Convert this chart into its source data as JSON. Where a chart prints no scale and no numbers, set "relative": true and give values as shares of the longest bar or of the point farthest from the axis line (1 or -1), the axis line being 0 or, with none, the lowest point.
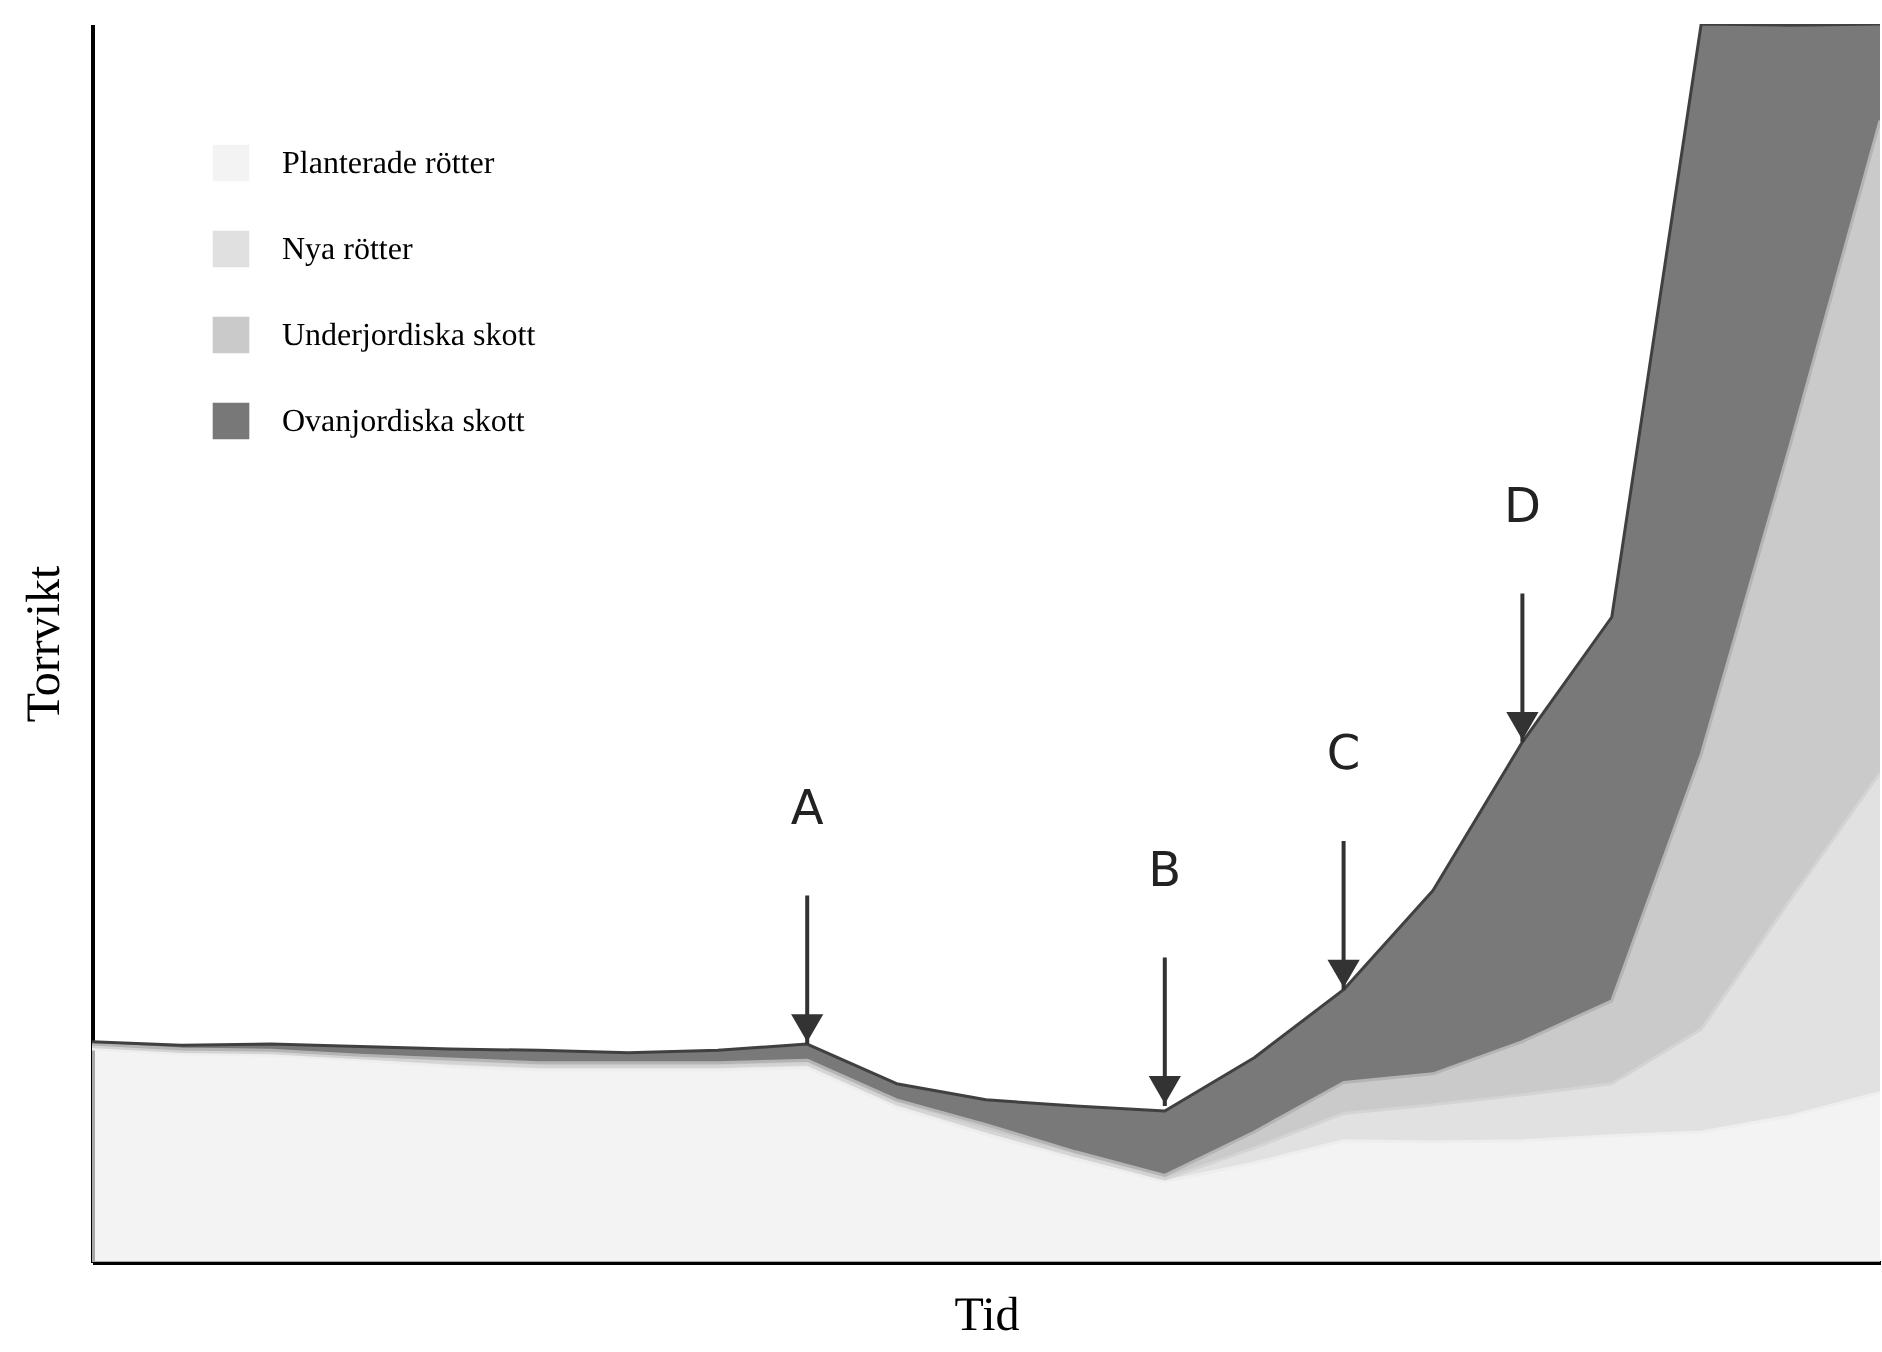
{
  "chart_data": {
    "type": "area",
    "stacked": true,
    "relative": true,
    "xlabel": "Tid",
    "ylabel": "Torrvikt",
    "legend": "top left",
    "tick_labels": false,
    "categories": [
      null,
      null,
      null,
      null,
      null,
      null,
      null,
      null,
      null,
      null,
      null,
      null,
      null,
      null,
      null,
      null,
      null,
      null,
      null,
      null,
      null
    ],
    "series": [
      {
        "name": "Planterade rötter",
        "color": "#eeeeee",
        "values": [
          0.172,
          0.168,
          0.167,
          0.163,
          0.158,
          0.155,
          0.155,
          0.155,
          0.157,
          0.125,
          0.103,
          0.083,
          0.065,
          0.08,
          0.098,
          0.097,
          0.098,
          0.102,
          0.105,
          0.118,
          0.137
        ]
      },
      {
        "name": "Nya rötter",
        "color": "#d4d4d4",
        "values": [
          0.002,
          0.002,
          0.002,
          0.002,
          0.003,
          0.003,
          0.003,
          0.003,
          0.003,
          0.003,
          0.003,
          0.003,
          0.002,
          0.012,
          0.022,
          0.03,
          0.037,
          0.042,
          0.083,
          0.175,
          0.258
        ]
      },
      {
        "name": "Underjordiska skott",
        "color": "#b4b4b4",
        "values": [
          0.002,
          0.002,
          0.002,
          0.002,
          0.003,
          0.003,
          0.003,
          0.003,
          0.003,
          0.003,
          0.005,
          0.003,
          0.003,
          0.013,
          0.025,
          0.025,
          0.043,
          0.067,
          0.222,
          0.368,
          0.527
        ]
      },
      {
        "name": "Ovanjordiska skott",
        "color": "#404040",
        "values": [
          0.002,
          0.003,
          0.005,
          0.007,
          0.008,
          0.01,
          0.008,
          0.01,
          0.013,
          0.013,
          0.02,
          0.037,
          0.052,
          0.06,
          0.075,
          0.148,
          0.242,
          0.31,
          0.59,
          0.338,
          0.078
        ]
      }
    ],
    "annotations": [
      {
        "text": "A",
        "y": 0.176
      },
      {
        "text": "B",
        "y": 0.126
      },
      {
        "text": "C",
        "y": 0.22
      },
      {
        "text": "D",
        "y": 0.42
      }
    ]
  }
}
